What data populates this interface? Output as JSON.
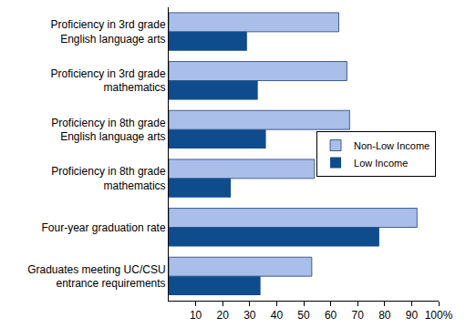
{
  "chart_data": {
    "type": "bar",
    "orientation": "horizontal",
    "categories": [
      "Proficiency in 3rd grade English language arts",
      "Proficiency in 3rd grade mathematics",
      "Proficiency in 8th grade English language arts",
      "Proficiency in 8th grade mathematics",
      "Four-year graduation rate",
      "Graduates meeting UC/CSU entrance requirements"
    ],
    "series": [
      {
        "name": "Non-Low Income",
        "color": "#a9bfe9",
        "values": [
          63,
          66,
          67,
          54,
          92,
          53
        ]
      },
      {
        "name": "Low Income",
        "color": "#0f4c8e",
        "values": [
          29,
          33,
          36,
          23,
          78,
          34
        ]
      }
    ],
    "xlim": [
      0,
      100
    ],
    "xticks": [
      10,
      20,
      30,
      40,
      50,
      60,
      70,
      80,
      90,
      {
        "value": 100,
        "label": "100%"
      }
    ],
    "grid": false,
    "legend": "right"
  }
}
